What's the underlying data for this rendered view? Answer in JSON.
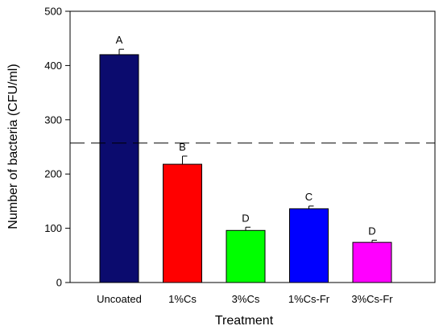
{
  "chart_data": {
    "type": "bar",
    "title": "",
    "xlabel": "Treatment",
    "ylabel": "Number of bacteria (CFU/ml)",
    "ylim": [
      0,
      500
    ],
    "yticks": [
      "0",
      "100",
      "200",
      "300",
      "400",
      "500"
    ],
    "grid": false,
    "categories": [
      "Uncoated",
      "1%Cs",
      "3%Cs",
      "1%Cs-Fr",
      "3%Cs-Fr"
    ],
    "values": [
      420,
      218,
      96,
      136,
      74
    ],
    "errors": [
      10,
      15,
      6,
      5,
      4
    ],
    "letters": [
      "A",
      "B",
      "D",
      "C",
      "D"
    ],
    "colors": [
      "#0b0b6e",
      "#ff0000",
      "#00ff00",
      "#0000ff",
      "#ff00ff"
    ],
    "reference_line": {
      "value": 257,
      "style": "dashed"
    }
  }
}
